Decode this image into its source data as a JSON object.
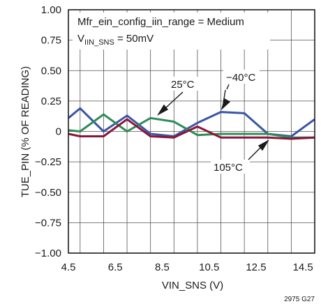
{
  "chart_data": {
    "type": "line",
    "xlabel": "VIN_SNS (V)",
    "ylabel": "TUE_PIN (% OF READING)",
    "xlim": [
      4.5,
      15
    ],
    "ylim": [
      -1.0,
      1.0
    ],
    "xticks": [
      "4.5",
      "6.5",
      "8.5",
      "10.5",
      "12.5",
      "14.5"
    ],
    "xtick_values": [
      4.5,
      6.5,
      8.5,
      10.5,
      12.5,
      14.5
    ],
    "yticks": [
      "1.00",
      "0.75",
      "0.50",
      "0.25",
      "0",
      "−0.25",
      "−0.50",
      "−0.75",
      "−1.00"
    ],
    "ytick_values": [
      1.0,
      0.75,
      0.5,
      0.25,
      0,
      -0.25,
      -0.5,
      -0.75,
      -1.0
    ],
    "grid": true,
    "series": [
      {
        "name": "−40°C",
        "color": "#3a55a4",
        "x": [
          4.5,
          5,
          6,
          7,
          8,
          9,
          10,
          11,
          12,
          13,
          14,
          15
        ],
        "y": [
          0.11,
          0.19,
          0.0,
          0.13,
          -0.02,
          -0.04,
          0.07,
          0.16,
          0.15,
          -0.02,
          -0.04,
          0.1
        ]
      },
      {
        "name": "25°C",
        "color": "#2e8b57",
        "x": [
          4.5,
          5,
          6,
          7,
          8,
          9,
          10,
          11,
          12,
          13,
          14,
          15
        ],
        "y": [
          0.01,
          0.0,
          0.14,
          0.0,
          0.11,
          0.08,
          -0.03,
          -0.02,
          -0.02,
          -0.02,
          -0.05,
          -0.05
        ]
      },
      {
        "name": "105°C",
        "color": "#8b1538",
        "x": [
          4.5,
          5,
          6,
          7,
          8,
          9,
          10,
          11,
          12,
          13,
          14,
          15
        ],
        "y": [
          -0.02,
          -0.04,
          -0.04,
          0.1,
          -0.04,
          -0.05,
          0.04,
          -0.05,
          -0.05,
          -0.05,
          -0.06,
          -0.05
        ]
      }
    ],
    "annotations": {
      "line1": "Mfr_ein_config_iin_range = Medium",
      "line2_prefix": "V",
      "line2_sub": "IIN_SNS",
      "line2_suffix": " = 50mV",
      "label_minus40": "−40°C",
      "label_25": "25°C",
      "label_105": "105°C"
    },
    "figure_id": "2975 G27"
  }
}
